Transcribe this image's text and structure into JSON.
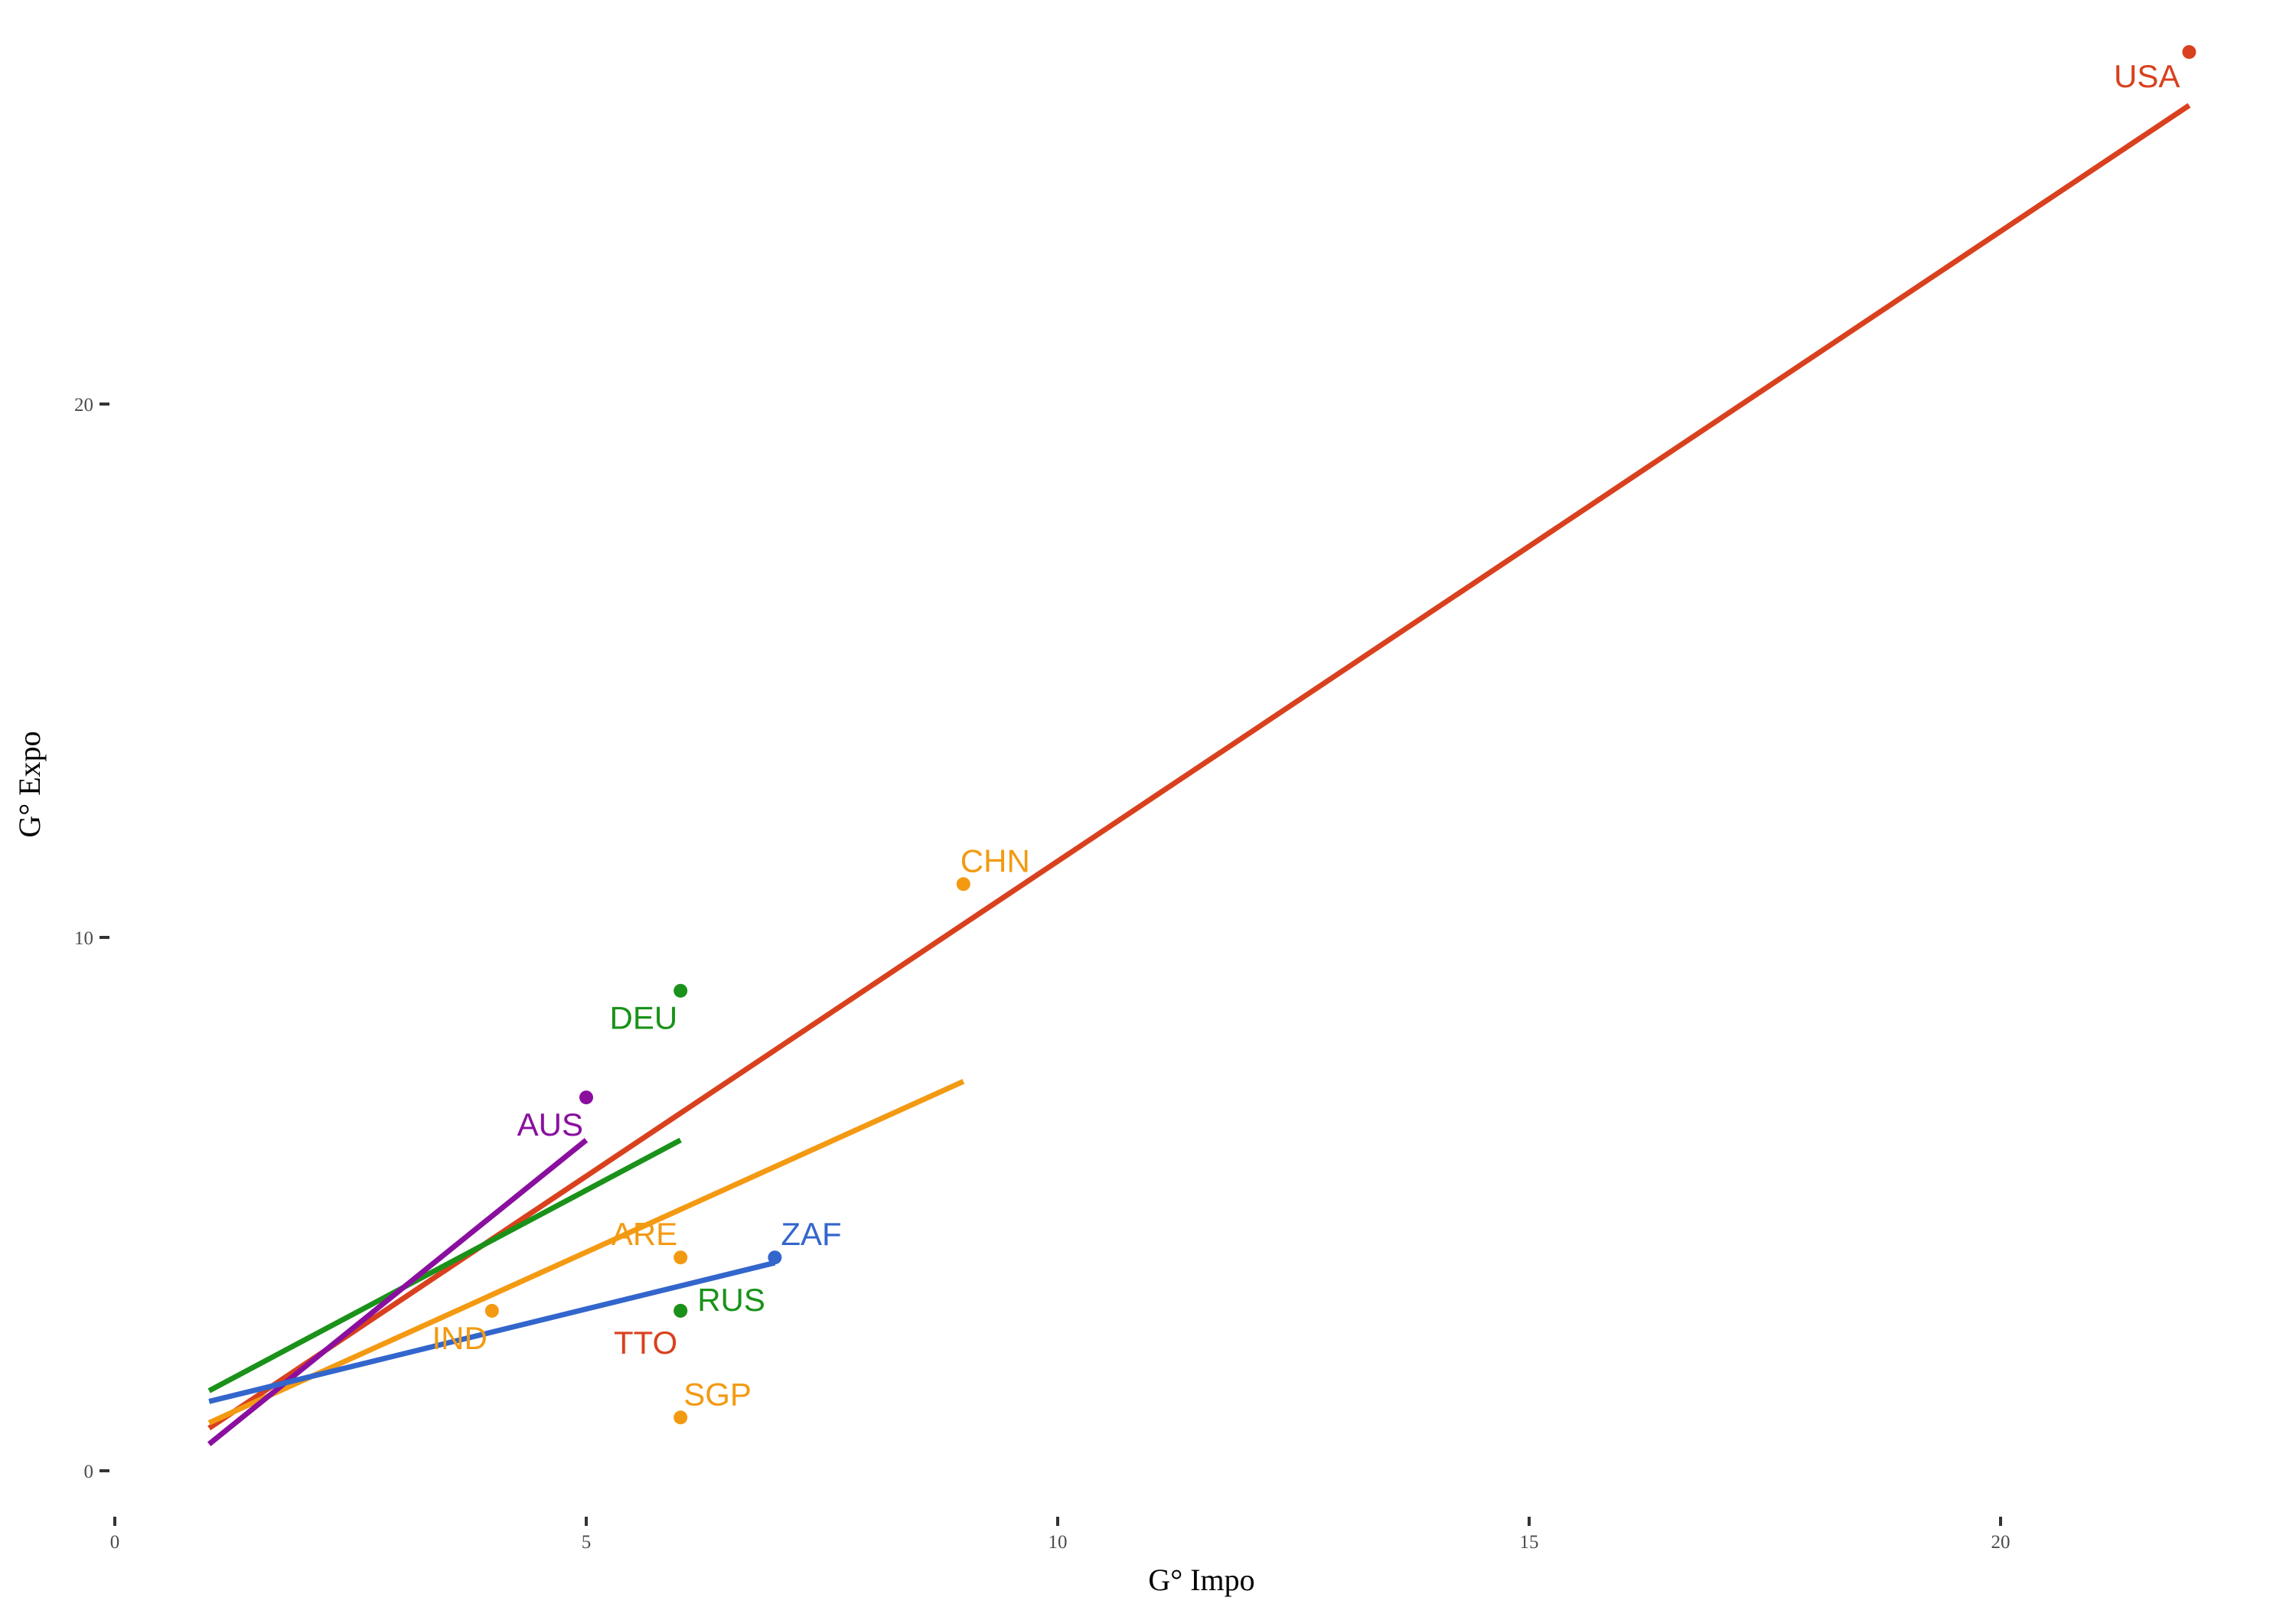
{
  "chart_data": {
    "type": "scatter",
    "title": "",
    "xlabel": "G° Impo",
    "ylabel": "G° Expo",
    "xlim": [
      0,
      22.5
    ],
    "ylim": [
      -0.4,
      26.8
    ],
    "xticks": [
      0,
      5,
      10,
      15,
      20
    ],
    "yticks": [
      0,
      10,
      20
    ],
    "grid": false,
    "legend": "none",
    "groups": [
      {
        "color": "#d9411e",
        "points": [
          {
            "label": "USA",
            "x": 22,
            "y": 26.6
          },
          {
            "label": "TTO",
            "x": 6,
            "y": 3
          }
        ],
        "trend": {
          "x": [
            1,
            22
          ],
          "y": [
            0.8,
            25.6
          ]
        }
      },
      {
        "color": "#f39a12",
        "points": [
          {
            "label": "CHN",
            "x": 9,
            "y": 11
          },
          {
            "label": "ARE",
            "x": 6,
            "y": 4
          },
          {
            "label": "IND",
            "x": 4,
            "y": 3
          },
          {
            "label": "SGP",
            "x": 6,
            "y": 1
          }
        ],
        "trend": {
          "x": [
            1,
            9
          ],
          "y": [
            0.9,
            7.3
          ]
        }
      },
      {
        "color": "#1a921a",
        "points": [
          {
            "label": "DEU",
            "x": 6,
            "y": 9
          },
          {
            "label": "RUS",
            "x": 6,
            "y": 3
          }
        ],
        "trend": {
          "x": [
            1,
            6
          ],
          "y": [
            1.5,
            6.2
          ]
        }
      },
      {
        "color": "#8a0f9f",
        "points": [
          {
            "label": "AUS",
            "x": 5,
            "y": 7
          }
        ],
        "trend": {
          "x": [
            1,
            5
          ],
          "y": [
            0.5,
            6.2
          ]
        }
      },
      {
        "color": "#3366cc",
        "points": [
          {
            "label": "ZAF",
            "x": 7,
            "y": 4
          }
        ],
        "trend": {
          "x": [
            1,
            7
          ],
          "y": [
            1.3,
            3.9
          ]
        }
      }
    ]
  }
}
